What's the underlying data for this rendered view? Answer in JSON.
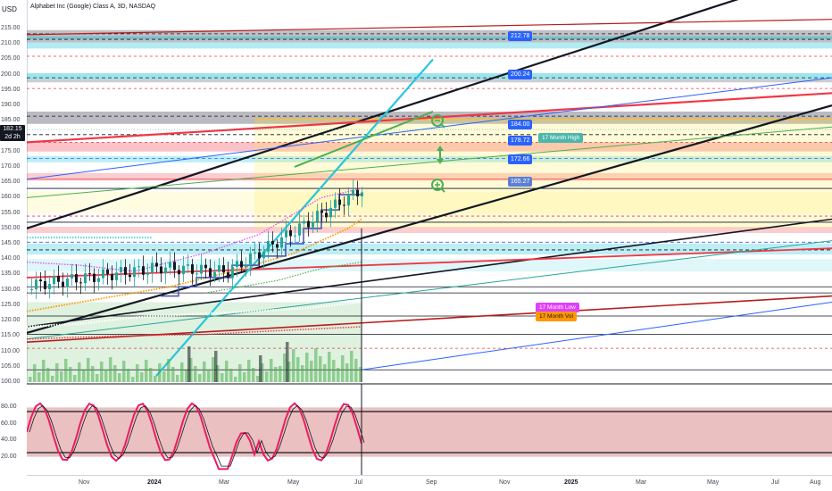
{
  "title": "Alphabet Inc (Google) Class A, 3D, NASDAQ",
  "currency": "USD",
  "current_price": {
    "value": "182.15",
    "countdown": "2d 2h"
  },
  "y_ticks": [
    "215.00",
    "210.00",
    "205.00",
    "200.00",
    "195.00",
    "190.00",
    "185.00",
    "180.00",
    "175.00",
    "170.00",
    "165.00",
    "160.00",
    "155.00",
    "150.00",
    "145.00",
    "140.00",
    "135.00",
    "130.00",
    "125.00",
    "120.00",
    "115.00",
    "110.00",
    "105.00",
    "100.00"
  ],
  "osc_ticks": [
    "80.00",
    "60.00",
    "40.00",
    "20.00"
  ],
  "price_labels": [
    {
      "name": "price-label-212",
      "text": "212.78",
      "color": "#2962ff"
    },
    {
      "name": "price-label-200",
      "text": "200.24",
      "color": "#2962ff"
    },
    {
      "name": "price-label-184",
      "text": "184.00",
      "color": "#2962ff"
    },
    {
      "name": "price-label-178",
      "text": "178.72",
      "color": "#2962ff"
    },
    {
      "name": "price-label-172",
      "text": "172.66",
      "color": "#2962ff"
    },
    {
      "name": "price-label-165",
      "text": "165.27",
      "color": "#5b7fd6"
    }
  ],
  "tags": {
    "high": "17 Month High",
    "low": "17 Month Low",
    "vol": "17 Month Vol"
  },
  "x_ticks": [
    {
      "text": "Nov",
      "bold": false
    },
    {
      "text": "2024",
      "bold": true
    },
    {
      "text": "Mar",
      "bold": false
    },
    {
      "text": "May",
      "bold": false
    },
    {
      "text": "Jul",
      "bold": false
    },
    {
      "text": "Sep",
      "bold": false
    },
    {
      "text": "Nov",
      "bold": false
    },
    {
      "text": "2025",
      "bold": true
    },
    {
      "text": "Mar",
      "bold": false
    },
    {
      "text": "May",
      "bold": false
    },
    {
      "text": "Jul",
      "bold": false
    },
    {
      "text": "Aug",
      "bold": false
    }
  ],
  "colors": {
    "up": "#26a69a",
    "down": "#131722",
    "cyan": "#26c6da",
    "red": "#f23645",
    "green": "#4caf50",
    "yellow": "#ffeb3b",
    "blue": "#2962ff",
    "pink": "#e91e63",
    "orange": "#ff9800",
    "purple": "#9c27b0"
  }
}
